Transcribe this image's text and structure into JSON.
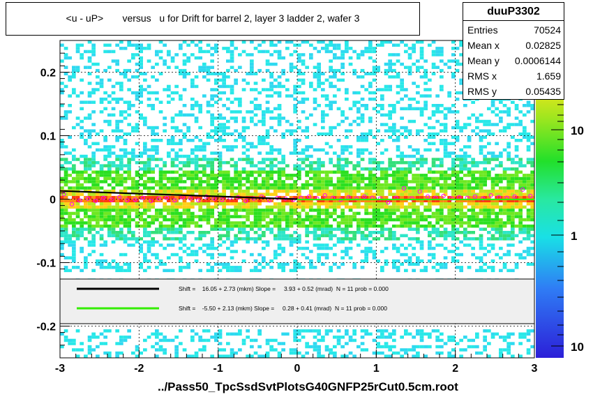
{
  "title": "<u - uP>       versus   u for Drift for barrel 2, layer 3 ladder 2, wafer 3",
  "stats": {
    "name": "duuP3302",
    "rows": [
      {
        "label": "Entries",
        "value": "70524"
      },
      {
        "label": "Mean x",
        "value": "0.02825"
      },
      {
        "label": "Mean y",
        "value": "0.0006144"
      },
      {
        "label": "RMS x",
        "value": "1.659"
      },
      {
        "label": "RMS y",
        "value": "0.05435"
      }
    ]
  },
  "footer": "../Pass50_TpcSsdSvtPlotsG40GNFP25rCut0.5cm.root",
  "legend": [
    {
      "color": "#000000",
      "text": "Shift =    16.05 + 2.73 (mkm) Slope =     3.93 + 0.52 (mrad)  N = 11 prob = 0.000"
    },
    {
      "color": "#33ee00",
      "text": "Shift =    -5.50 + 2.13 (mkm) Slope =     0.28 + 0.41 (mrad)  N = 11 prob = 0.000"
    }
  ],
  "colors": {
    "fit_left": "#000000",
    "fit_right": "#33ee00",
    "profile_markers": "#ff00ff"
  },
  "chart_data": {
    "type": "heatmap",
    "xlim": [
      -3,
      3
    ],
    "ylim": [
      -0.25,
      0.25
    ],
    "x_ticks": [
      "-3",
      "-2",
      "-1",
      "0",
      "1",
      "2",
      "3"
    ],
    "y_ticks": [
      "-0.2",
      "-0.1",
      "0",
      "0.1",
      "0.2"
    ],
    "z_scale": "log",
    "z_ticks": [
      "10",
      "1",
      "10"
    ],
    "grid": true,
    "profile": {
      "x": [
        -2.95,
        -2.85,
        -2.75,
        -2.65,
        -2.55,
        -2.45,
        -2.35,
        -2.25,
        -2.15,
        -2.05,
        -1.95,
        -1.85,
        -1.75,
        -1.65,
        -1.55,
        -1.45,
        -1.35,
        -1.25,
        -1.15,
        -1.05,
        -0.95,
        -0.85,
        -0.75,
        -0.65,
        -0.55,
        -0.45,
        -0.35,
        -0.25,
        -0.15,
        -0.05,
        0.05,
        0.15,
        0.25,
        0.35,
        0.45,
        0.55,
        0.65,
        0.75,
        0.85,
        0.95,
        1.05,
        1.15,
        1.25,
        1.35,
        1.45,
        1.55,
        1.65,
        1.75,
        1.85,
        1.95,
        2.05,
        2.15,
        2.25,
        2.35,
        2.45,
        2.55,
        2.65,
        2.75,
        2.85,
        2.95
      ],
      "y": [
        0.008,
        -0.008,
        -0.002,
        0.001,
        -0.003,
        0.002,
        -0.001,
        0.003,
        -0.002,
        -0.001,
        0.002,
        -0.003,
        0.001,
        0.002,
        -0.002,
        0.003,
        0.001,
        -0.002,
        0.004,
        0.001,
        -0.001,
        0.002,
        0.003,
        -0.003,
        0.001,
        0.004,
        -0.002,
        0.002,
        0.001,
        -0.001,
        0.002,
        0.004,
        0.001,
        0.006,
        0.002,
        -0.001,
        0.003,
        0.001,
        0.004,
        0.002,
        0.001,
        -0.005,
        0.002,
        0.017,
        0.001,
        0.012,
        0.004,
        0.002,
        0.005,
        0.001,
        0.003,
        0.002,
        0.004,
        0.001,
        0.006,
        0.003,
        0.002,
        0.004,
        0.015,
        0.005
      ]
    },
    "fits": [
      {
        "x": [
          -3.0,
          0.0
        ],
        "y": [
          0.013,
          0.0
        ]
      },
      {
        "x": [
          0.0,
          3.0
        ],
        "y": [
          -0.0006,
          -0.0004
        ]
      }
    ]
  }
}
